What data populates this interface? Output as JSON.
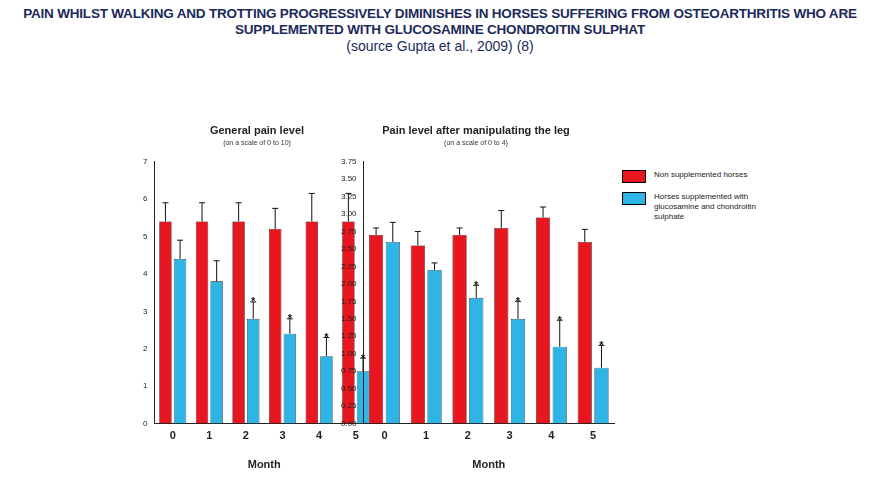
{
  "header": {
    "title": "PAIN WHILST WALKING AND TROTTING PROGRESSIVELY DIMINISHES IN HORSES SUFFERING FROM OSTEOARTHRITIS WHO ARE SUPPLEMENTED WITH GLUCOSAMINE CHONDROITIN SULPHAT",
    "source": "(source Gupta et al., 2009) (8)"
  },
  "chart_data": [
    {
      "type": "bar",
      "title": "General pain level",
      "subtitle": "(on a scale of 0 to 10)",
      "x_label": "Month",
      "categories": [
        "0",
        "1",
        "2",
        "3",
        "4",
        "5"
      ],
      "series": [
        {
          "name": "Non supplemented horses",
          "color": "#e8161e",
          "values": [
            5.4,
            5.4,
            5.4,
            5.2,
            5.4,
            5.4
          ],
          "errors": [
            0.5,
            0.5,
            0.5,
            0.55,
            0.75,
            0.75
          ],
          "annotations": [
            null,
            null,
            null,
            null,
            null,
            null
          ]
        },
        {
          "name": "Horses supplemented with glucosamine and chondroitin sulphate",
          "color": "#2fb4e6",
          "values": [
            4.4,
            3.8,
            2.8,
            2.4,
            1.8,
            1.4
          ],
          "errors": [
            0.5,
            0.55,
            0.45,
            0.4,
            0.5,
            0.35
          ],
          "annotations": [
            null,
            null,
            "*",
            "*",
            "*",
            "*"
          ]
        }
      ],
      "ylim": [
        0,
        7
      ],
      "yticks": [
        0,
        1,
        2,
        3,
        4,
        5,
        6,
        7
      ],
      "grid": false
    },
    {
      "type": "bar",
      "title": "Pain level after manipulating the leg",
      "subtitle": "(on a scale of 0 to 4)",
      "x_label": "Month",
      "categories": [
        "0",
        "1",
        "2",
        "3",
        "4",
        "5"
      ],
      "series": [
        {
          "name": "Non supplemented horses",
          "color": "#e8161e",
          "values": [
            2.7,
            2.55,
            2.7,
            2.8,
            2.95,
            2.6
          ],
          "errors": [
            0.1,
            0.2,
            0.1,
            0.25,
            0.15,
            0.18
          ],
          "annotations": [
            null,
            null,
            null,
            null,
            null,
            null
          ]
        },
        {
          "name": "Horses supplemented with glucosamine and chondroitin sulphate",
          "color": "#2fb4e6",
          "values": [
            2.6,
            2.2,
            1.8,
            1.5,
            1.1,
            0.8
          ],
          "errors": [
            0.28,
            0.1,
            0.18,
            0.25,
            0.38,
            0.32
          ],
          "annotations": [
            null,
            null,
            "*",
            "*",
            "*",
            "*"
          ]
        }
      ],
      "ylim": [
        0,
        3.75
      ],
      "yticks": [
        {
          "value": 0,
          "label": "0.00"
        },
        {
          "value": 0.25,
          "label": "0.25"
        },
        {
          "value": 0.5,
          "label": "0.50"
        },
        {
          "value": 0.75,
          "label": "0.75"
        },
        {
          "value": 1,
          "label": "1.00"
        },
        {
          "value": 1.25,
          "label": "1.25"
        },
        {
          "value": 1.5,
          "label": "1.50"
        },
        {
          "value": 1.75,
          "label": "1.75"
        },
        {
          "value": 2,
          "label": "2.00"
        },
        {
          "value": 2.25,
          "label": "2.25"
        },
        {
          "value": 2.5,
          "label": "2.50"
        },
        {
          "value": 2.75,
          "label": "2.75"
        },
        {
          "value": 3,
          "label": "3.00"
        },
        {
          "value": 3.25,
          "label": "3.25"
        },
        {
          "value": 3.5,
          "label": "3.50"
        },
        {
          "value": 3.75,
          "label": "3.75"
        }
      ],
      "grid": false,
      "legend": "right"
    }
  ]
}
